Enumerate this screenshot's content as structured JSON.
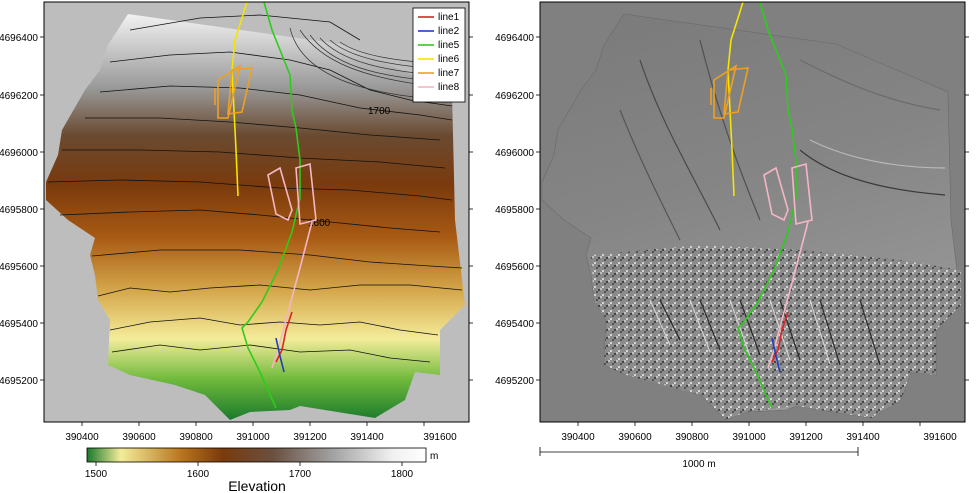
{
  "left_map": {
    "y_ticks": [
      "4696400",
      "4696200",
      "4696000",
      "4695800",
      "4695600",
      "4695400",
      "4695200"
    ],
    "x_ticks": [
      "390400",
      "390600",
      "390800",
      "391000",
      "391200",
      "391400",
      "391600"
    ],
    "contour_labels": [
      "1700",
      "1600"
    ],
    "legend": [
      {
        "label": "line1",
        "color": "#d62728"
      },
      {
        "label": "line2",
        "color": "#1f3fbf"
      },
      {
        "label": "line5",
        "color": "#2ecc1a"
      },
      {
        "label": "line6",
        "color": "#f5e400"
      },
      {
        "label": "line7",
        "color": "#f0a020"
      },
      {
        "label": "line8",
        "color": "#f4b6c2"
      }
    ]
  },
  "colorbar": {
    "ticks": [
      "1500",
      "1600",
      "1700",
      "1800"
    ],
    "unit": "m",
    "title": "Elevation"
  },
  "right_map": {
    "y_ticks": [
      "4696400",
      "4696200",
      "4696000",
      "4695800",
      "4695600",
      "4695400",
      "4695200"
    ],
    "x_ticks": [
      "390400",
      "390600",
      "390800",
      "391000",
      "391200",
      "391400",
      "391600"
    ],
    "scalebar_label": "1000 m"
  }
}
